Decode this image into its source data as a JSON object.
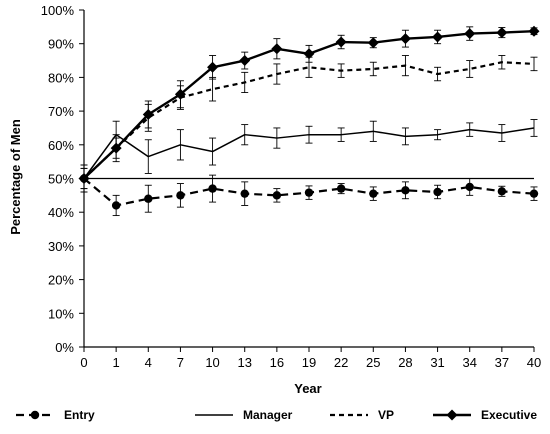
{
  "chart_data": {
    "type": "line",
    "title": "",
    "xlabel": "Year",
    "ylabel": "Percentage of Men",
    "x": [
      0,
      1,
      4,
      7,
      10,
      13,
      16,
      19,
      22,
      25,
      28,
      31,
      34,
      37,
      40
    ],
    "x_tick_labels": [
      "0",
      "1",
      "4",
      "7",
      "10",
      "13",
      "16",
      "19",
      "22",
      "25",
      "28",
      "31",
      "34",
      "37",
      "40"
    ],
    "ylim": [
      0,
      100
    ],
    "y_tick_labels": [
      "0%",
      "10%",
      "20%",
      "30%",
      "40%",
      "50%",
      "60%",
      "70%",
      "80%",
      "90%",
      "100%"
    ],
    "grid": false,
    "reference_line": 50,
    "legend_position": "bottom",
    "series": [
      {
        "name": "Entry",
        "line_style": "dash-dot",
        "marker": "circle",
        "values": [
          50,
          42,
          44,
          45,
          47,
          45.5,
          45,
          45.8,
          47,
          45.5,
          46.5,
          46,
          47.5,
          46.2,
          45.5
        ],
        "error": [
          4,
          3,
          4,
          3.5,
          4,
          3.5,
          2,
          2,
          1.5,
          2,
          2.5,
          2,
          2.5,
          1.5,
          2
        ]
      },
      {
        "name": "Manager",
        "line_style": "solid",
        "marker": "none",
        "values": [
          50,
          63,
          56.5,
          60,
          58,
          63,
          62,
          63,
          63,
          64,
          62.5,
          63,
          64.5,
          63.5,
          65
        ],
        "error": [
          4,
          4,
          5,
          4.5,
          4,
          3,
          3,
          2.5,
          2,
          3,
          2.5,
          1.5,
          2,
          2.5,
          2.5
        ]
      },
      {
        "name": "VP",
        "line_style": "dashed",
        "marker": "none",
        "values": [
          50,
          59,
          68,
          74,
          76.5,
          78.5,
          81,
          83,
          82,
          82.5,
          83.5,
          81,
          82.5,
          84.5,
          84
        ],
        "error": [
          3,
          4,
          4,
          3.5,
          3.5,
          3,
          3,
          3,
          2,
          2,
          3,
          2,
          2.5,
          2,
          2
        ]
      },
      {
        "name": "Executive",
        "line_style": "solid-bold",
        "marker": "diamond",
        "values": [
          50,
          59,
          69,
          75,
          83,
          85,
          88.5,
          87,
          90.5,
          90.3,
          91.5,
          92,
          93,
          93.3,
          93.7
        ],
        "error": [
          3,
          3,
          4,
          4,
          3.5,
          2.5,
          3,
          2.5,
          2,
          1.5,
          2.5,
          2,
          2,
          1.5,
          1
        ]
      }
    ]
  }
}
